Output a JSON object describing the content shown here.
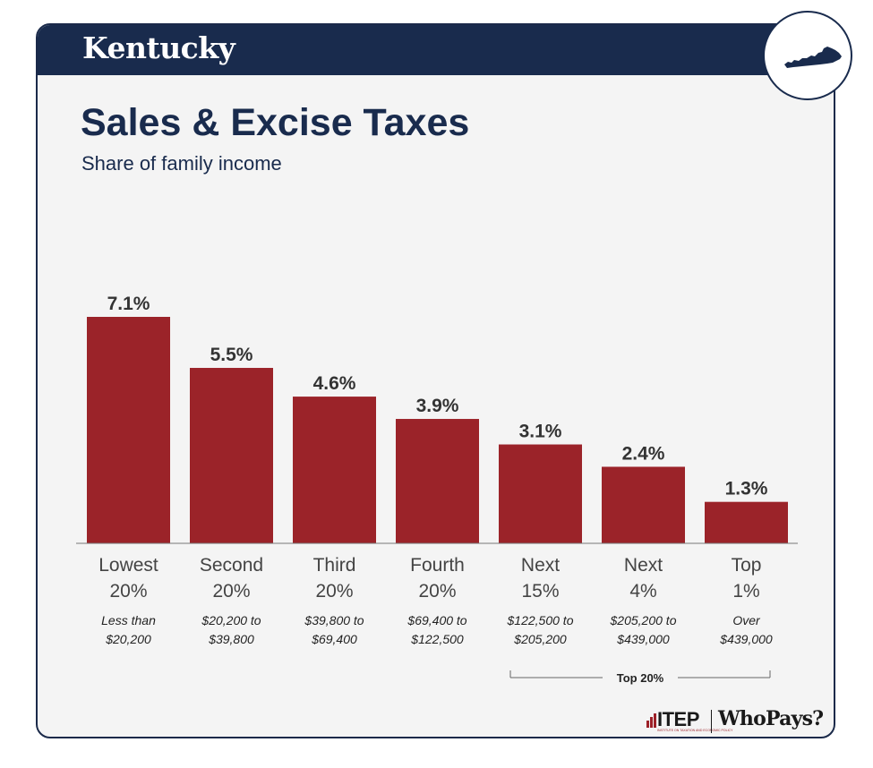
{
  "header": {
    "state": "Kentucky",
    "title": "Sales & Excise Taxes",
    "subtitle": "Share of family income"
  },
  "colors": {
    "navy": "#192b4d",
    "bar": "#9b2329",
    "panel": "#f4f4f4",
    "text": "#333333"
  },
  "chart_data": {
    "type": "bar",
    "categories": [
      [
        "Lowest",
        "20%"
      ],
      [
        "Second",
        "20%"
      ],
      [
        "Third",
        "20%"
      ],
      [
        "Fourth",
        "20%"
      ],
      [
        "Next",
        "15%"
      ],
      [
        "Next",
        "4%"
      ],
      [
        "Top",
        "1%"
      ]
    ],
    "income_ranges": [
      [
        "Less than",
        "$20,200"
      ],
      [
        "$20,200 to",
        "$39,800"
      ],
      [
        "$39,800 to",
        "$69,400"
      ],
      [
        "$69,400 to",
        "$122,500"
      ],
      [
        "$122,500 to",
        "$205,200"
      ],
      [
        "$205,200 to",
        "$439,000"
      ],
      [
        "Over",
        "$439,000"
      ]
    ],
    "values": [
      7.1,
      5.5,
      4.6,
      3.9,
      3.1,
      2.4,
      1.3
    ],
    "value_labels": [
      "7.1%",
      "5.5%",
      "4.6%",
      "3.9%",
      "3.1%",
      "2.4%",
      "1.3%"
    ],
    "group_bracket": {
      "label": "Top 20%",
      "from_index": 4,
      "to_index": 6
    },
    "grid": false
  },
  "footer": {
    "itep": "ITEP",
    "itep_sub": "INSTITUTE ON TAXATION AND ECONOMIC POLICY",
    "whopays": "WhoPays?"
  }
}
